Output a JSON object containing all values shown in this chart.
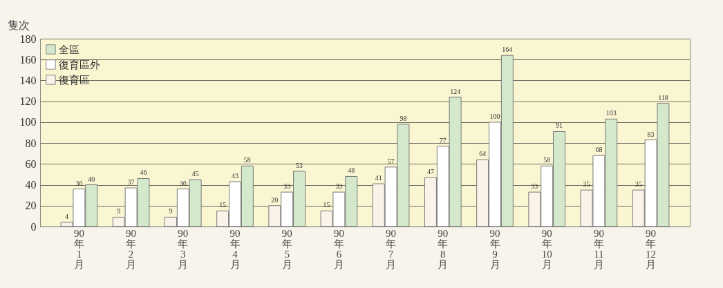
{
  "chart_data": {
    "type": "bar",
    "ylabel": "隻次",
    "categories": [
      "90年1月",
      "90年2月",
      "90年3月",
      "90年4月",
      "90年5月",
      "90年6月",
      "90年7月",
      "90年8月",
      "90年9月",
      "90年10月",
      "90年11月",
      "90年12月"
    ],
    "series": [
      {
        "name": "復育區",
        "color": "#fbf3ea",
        "values": [
          4,
          9,
          9,
          15,
          20,
          15,
          41,
          47,
          64,
          33,
          35,
          35
        ]
      },
      {
        "name": "復育區外",
        "color": "#ffffff",
        "values": [
          36,
          37,
          36,
          43,
          33,
          33,
          57,
          77,
          100,
          58,
          68,
          83
        ]
      },
      {
        "name": "全區",
        "color": "#d4e8cc",
        "values": [
          40,
          46,
          45,
          58,
          53,
          48,
          98,
          124,
          164,
          91,
          103,
          118
        ]
      }
    ],
    "ylim": [
      0,
      180
    ],
    "yticks": [
      0,
      20,
      40,
      60,
      80,
      100,
      120,
      140,
      160,
      180
    ],
    "grid": "y",
    "legend": "top left",
    "data_labels": true
  }
}
